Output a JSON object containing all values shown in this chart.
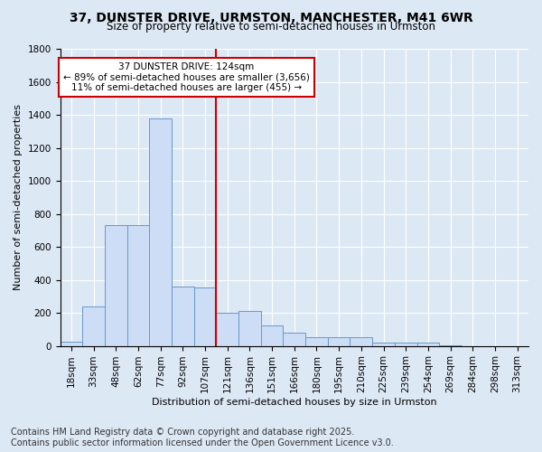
{
  "title": "37, DUNSTER DRIVE, URMSTON, MANCHESTER, M41 6WR",
  "subtitle": "Size of property relative to semi-detached houses in Urmston",
  "xlabel": "Distribution of semi-detached houses by size in Urmston",
  "ylabel": "Number of semi-detached properties",
  "categories": [
    "18sqm",
    "33sqm",
    "48sqm",
    "62sqm",
    "77sqm",
    "92sqm",
    "107sqm",
    "121sqm",
    "136sqm",
    "151sqm",
    "166sqm",
    "180sqm",
    "195sqm",
    "210sqm",
    "225sqm",
    "239sqm",
    "254sqm",
    "269sqm",
    "284sqm",
    "298sqm",
    "313sqm"
  ],
  "values": [
    25,
    240,
    730,
    730,
    1380,
    360,
    355,
    200,
    210,
    125,
    80,
    50,
    50,
    50,
    20,
    20,
    20,
    5,
    0,
    0,
    0
  ],
  "bar_color": "#ccddf5",
  "bar_edge_color": "#6699cc",
  "vline_index": 7,
  "annotation_text_line1": "37 DUNSTER DRIVE: 124sqm",
  "annotation_text_line2": "← 89% of semi-detached houses are smaller (3,656)",
  "annotation_text_line3": "11% of semi-detached houses are larger (455) →",
  "annotation_box_color": "#ffffff",
  "annotation_box_edge": "#cc0000",
  "vline_color": "#cc0000",
  "ylim": [
    0,
    1800
  ],
  "yticks": [
    0,
    200,
    400,
    600,
    800,
    1000,
    1200,
    1400,
    1600,
    1800
  ],
  "footer_line1": "Contains HM Land Registry data © Crown copyright and database right 2025.",
  "footer_line2": "Contains public sector information licensed under the Open Government Licence v3.0.",
  "background_color": "#dde8f5",
  "plot_bg_color": "#dde8f5",
  "title_fontsize": 10,
  "subtitle_fontsize": 8.5,
  "axis_label_fontsize": 8,
  "tick_fontsize": 7.5,
  "footer_fontsize": 7
}
